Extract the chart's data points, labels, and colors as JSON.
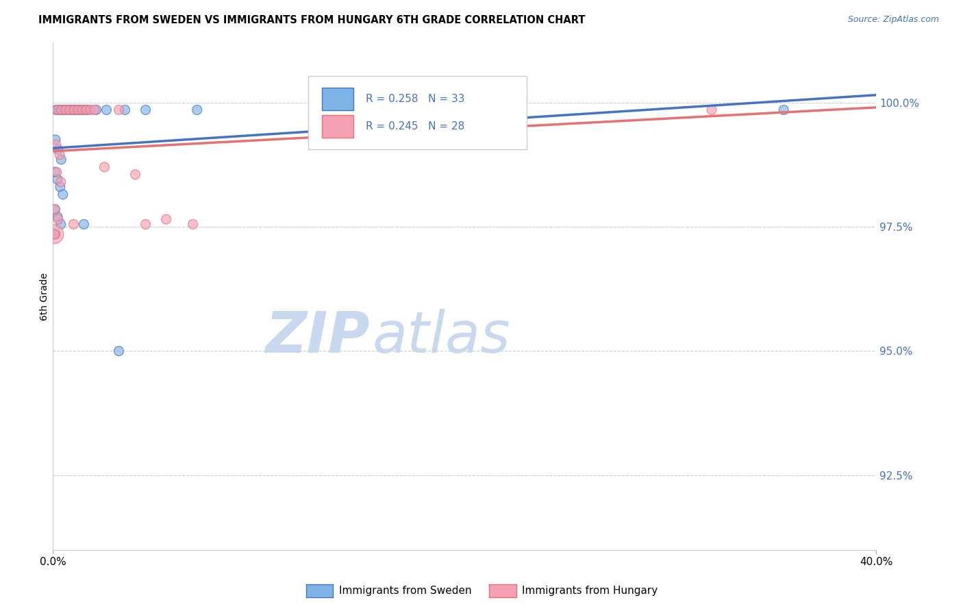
{
  "title": "IMMIGRANTS FROM SWEDEN VS IMMIGRANTS FROM HUNGARY 6TH GRADE CORRELATION CHART",
  "source": "Source: ZipAtlas.com",
  "ylabel": "6th Grade",
  "legend_sweden": "Immigrants from Sweden",
  "legend_hungary": "Immigrants from Hungary",
  "R_sweden": 0.258,
  "N_sweden": 33,
  "R_hungary": 0.245,
  "N_hungary": 28,
  "color_sweden": "#7EB3E8",
  "color_hungary": "#F4A0B5",
  "color_sweden_line": "#4472C4",
  "color_hungary_line": "#E87070",
  "watermark_zip": "ZIP",
  "watermark_atlas": "atlas",
  "watermark_color_zip": "#C8D8EE",
  "watermark_color_atlas": "#C8D8EE",
  "xlim": [
    0.0,
    40.0
  ],
  "ylim": [
    91.0,
    101.2
  ],
  "yticks_right": [
    100.0,
    97.5,
    95.0,
    92.5
  ],
  "sweden_points": [
    [
      0.15,
      99.85
    ],
    [
      0.28,
      99.85
    ],
    [
      0.4,
      99.85
    ],
    [
      0.52,
      99.85
    ],
    [
      0.65,
      99.85
    ],
    [
      0.78,
      99.85
    ],
    [
      0.9,
      99.85
    ],
    [
      1.02,
      99.85
    ],
    [
      1.15,
      99.85
    ],
    [
      1.28,
      99.85
    ],
    [
      1.4,
      99.85
    ],
    [
      1.55,
      99.85
    ],
    [
      1.68,
      99.85
    ],
    [
      2.1,
      99.85
    ],
    [
      2.6,
      99.85
    ],
    [
      0.12,
      99.25
    ],
    [
      0.25,
      99.05
    ],
    [
      0.4,
      98.85
    ],
    [
      0.1,
      98.6
    ],
    [
      0.22,
      98.45
    ],
    [
      0.35,
      98.3
    ],
    [
      0.48,
      98.15
    ],
    [
      0.1,
      97.85
    ],
    [
      0.22,
      97.7
    ],
    [
      0.38,
      97.55
    ],
    [
      0.12,
      97.35
    ],
    [
      1.5,
      97.55
    ],
    [
      7.0,
      99.85
    ],
    [
      20.5,
      99.85
    ],
    [
      35.5,
      99.85
    ],
    [
      3.5,
      99.85
    ],
    [
      4.5,
      99.85
    ],
    [
      3.2,
      95.0
    ]
  ],
  "sweden_sizes": [
    100,
    100,
    100,
    100,
    100,
    100,
    100,
    100,
    100,
    100,
    100,
    100,
    100,
    100,
    100,
    100,
    100,
    100,
    100,
    100,
    100,
    100,
    100,
    100,
    100,
    100,
    100,
    100,
    100,
    100,
    100,
    100,
    100
  ],
  "hungary_points": [
    [
      0.2,
      99.85
    ],
    [
      0.42,
      99.85
    ],
    [
      0.62,
      99.85
    ],
    [
      0.82,
      99.85
    ],
    [
      1.02,
      99.85
    ],
    [
      1.22,
      99.85
    ],
    [
      1.42,
      99.85
    ],
    [
      1.62,
      99.85
    ],
    [
      1.82,
      99.85
    ],
    [
      2.02,
      99.85
    ],
    [
      0.15,
      99.15
    ],
    [
      0.32,
      98.95
    ],
    [
      0.18,
      98.6
    ],
    [
      0.38,
      98.4
    ],
    [
      0.08,
      97.85
    ],
    [
      0.25,
      97.65
    ],
    [
      0.05,
      97.35
    ],
    [
      1.0,
      97.55
    ],
    [
      2.5,
      98.7
    ],
    [
      4.5,
      97.55
    ],
    [
      5.5,
      97.65
    ],
    [
      0.05,
      97.35
    ],
    [
      3.2,
      99.85
    ],
    [
      20.5,
      99.85
    ],
    [
      32.0,
      99.85
    ],
    [
      4.0,
      98.55
    ],
    [
      6.8,
      97.55
    ],
    [
      0.08,
      97.35
    ]
  ],
  "hungary_sizes": [
    100,
    100,
    100,
    100,
    100,
    100,
    100,
    100,
    100,
    100,
    100,
    100,
    100,
    100,
    100,
    100,
    100,
    100,
    100,
    100,
    100,
    400,
    100,
    100,
    100,
    100,
    100,
    100
  ]
}
